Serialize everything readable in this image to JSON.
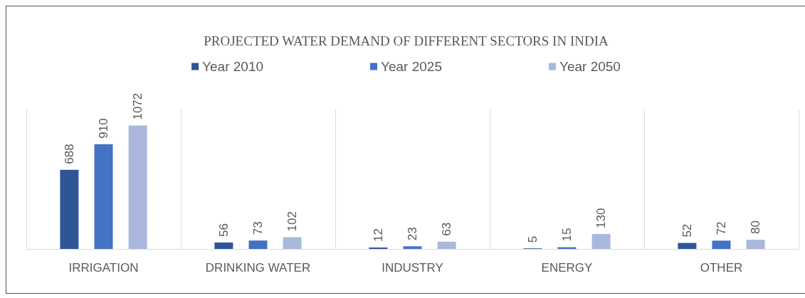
{
  "chart_data": {
    "type": "bar",
    "title": "PROJECTED WATER DEMAND OF DIFFERENT SECTORS IN INDIA",
    "categories": [
      "IRRIGATION",
      "DRINKING WATER",
      "INDUSTRY",
      "ENERGY",
      "OTHER"
    ],
    "series": [
      {
        "name": "Year 2010",
        "color": "#2f5597",
        "values": [
          688,
          56,
          12,
          5,
          52
        ]
      },
      {
        "name": "Year 2025",
        "color": "#4472c4",
        "values": [
          910,
          73,
          23,
          15,
          72
        ]
      },
      {
        "name": "Year 2050",
        "color": "#a9b8dc",
        "values": [
          1072,
          102,
          63,
          130,
          80
        ]
      }
    ],
    "data_labels": true,
    "legend": "top",
    "grid": "x"
  }
}
